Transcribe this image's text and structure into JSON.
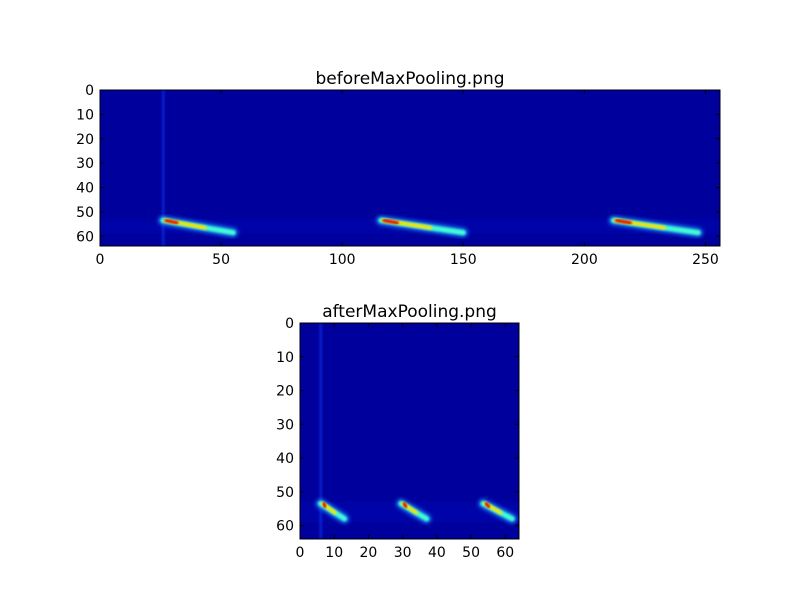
{
  "chart_data": [
    {
      "type": "heatmap",
      "title": "beforeMaxPooling.png",
      "colormap": "jet",
      "background_color": "#00009c",
      "xlim": [
        0,
        256
      ],
      "ylim": [
        64,
        0
      ],
      "xticks": [
        0,
        50,
        100,
        150,
        200,
        250
      ],
      "yticks": [
        0,
        10,
        20,
        30,
        40,
        50,
        60
      ],
      "vertical_line_x": 26,
      "streaks": [
        {
          "x_start": 26,
          "y_start": 53.5,
          "x_end": 55,
          "y_end": 58.5
        },
        {
          "x_start": 116,
          "y_start": 53.5,
          "x_end": 150,
          "y_end": 58.5
        },
        {
          "x_start": 212,
          "y_start": 53.5,
          "x_end": 247,
          "y_end": 58.5
        }
      ]
    },
    {
      "type": "heatmap",
      "title": "afterMaxPooling.png",
      "colormap": "jet",
      "background_color": "#00009c",
      "xlim": [
        0,
        64
      ],
      "ylim": [
        64,
        0
      ],
      "xticks": [
        0,
        10,
        20,
        30,
        40,
        50,
        60
      ],
      "yticks": [
        0,
        10,
        20,
        30,
        40,
        50,
        60
      ],
      "vertical_line_x": 6,
      "streaks": [
        {
          "x_start": 6,
          "y_start": 53.5,
          "x_end": 13,
          "y_end": 58
        },
        {
          "x_start": 29.5,
          "y_start": 53.5,
          "x_end": 37,
          "y_end": 58
        },
        {
          "x_start": 53.5,
          "y_start": 53.5,
          "x_end": 62,
          "y_end": 58
        }
      ]
    }
  ]
}
